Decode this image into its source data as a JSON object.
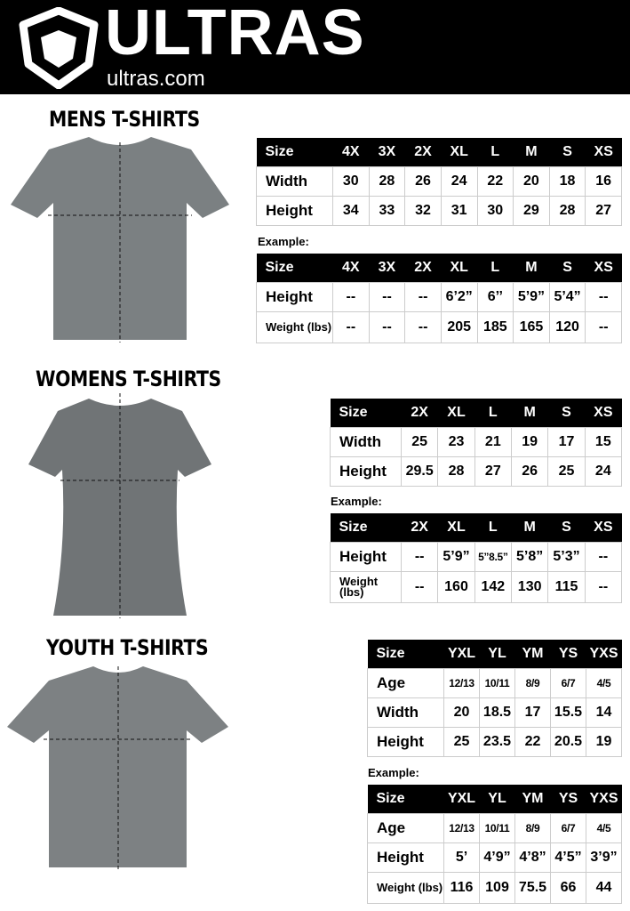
{
  "header": {
    "brand": "ULTRAS",
    "url": "ultras.com"
  },
  "example_label": "Example:",
  "sections": [
    {
      "title": "MENS T-SHIRTS",
      "sizes": [
        "Size",
        "4X",
        "3X",
        "2X",
        "XL",
        "L",
        "M",
        "S",
        "XS"
      ],
      "measure": [
        [
          "Width",
          "30",
          "28",
          "26",
          "24",
          "22",
          "20",
          "18",
          "16"
        ],
        [
          "Height",
          "34",
          "33",
          "32",
          "31",
          "30",
          "29",
          "28",
          "27"
        ]
      ],
      "example": [
        [
          "Height",
          "--",
          "--",
          "--",
          "6’2”",
          "6’’",
          "5’9”",
          "5’4”",
          "--"
        ],
        [
          "Weight (lbs)",
          "--",
          "--",
          "--",
          "205",
          "185",
          "165",
          "120",
          "--"
        ]
      ]
    },
    {
      "title": "WOMENS T-SHIRTS",
      "sizes": [
        "Size",
        "2X",
        "XL",
        "L",
        "M",
        "S",
        "XS"
      ],
      "measure": [
        [
          "Width",
          "25",
          "23",
          "21",
          "19",
          "17",
          "15"
        ],
        [
          "Height",
          "29.5",
          "28",
          "27",
          "26",
          "25",
          "24"
        ]
      ],
      "example": [
        [
          "Height",
          "--",
          "5’9”",
          "5’’8.5”",
          "5’8”",
          "5’3”",
          "--"
        ],
        [
          "Weight (lbs)",
          "--",
          "160",
          "142",
          "130",
          "115",
          "--"
        ]
      ]
    },
    {
      "title": "YOUTH T-SHIRTS",
      "sizes": [
        "Size",
        "YXL",
        "YL",
        "YM",
        "YS",
        "YXS"
      ],
      "measure": [
        [
          "Age",
          "12/13",
          "10/11",
          "8/9",
          "6/7",
          "4/5"
        ],
        [
          "Width",
          "20",
          "18.5",
          "17",
          "15.5",
          "14"
        ],
        [
          "Height",
          "25",
          "23.5",
          "22",
          "20.5",
          "19"
        ]
      ],
      "example": [
        [
          "Age",
          "12/13",
          "10/11",
          "8/9",
          "6/7",
          "4/5"
        ],
        [
          "Height",
          "5’",
          "4’9”",
          "4’8”",
          "4’5”",
          "3’9”"
        ],
        [
          "Weight (lbs)",
          "116",
          "109",
          "75.5",
          "66",
          "44"
        ]
      ]
    }
  ]
}
